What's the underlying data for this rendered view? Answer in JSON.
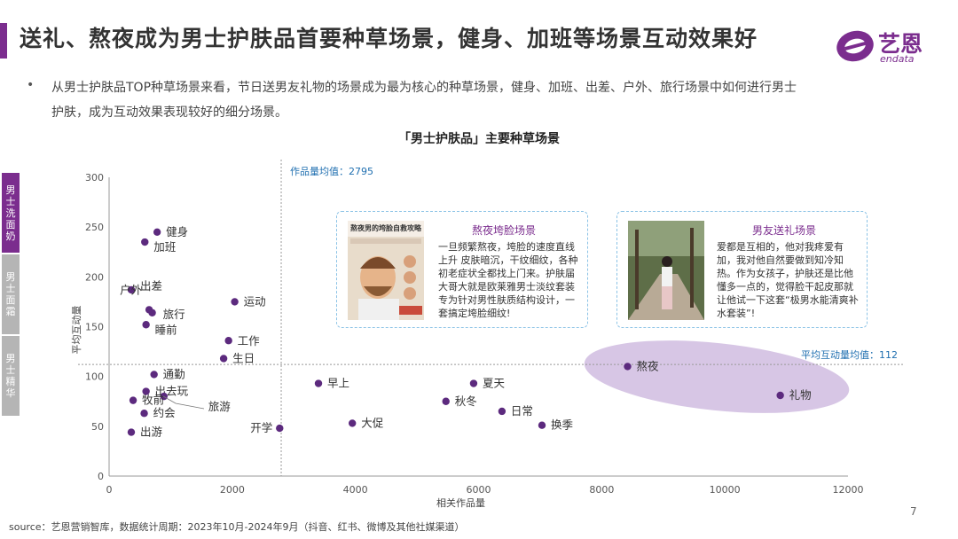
{
  "page": {
    "title": "送礼、熬夜成为男士护肤品首要种草场景，健身、加班等场景互动效果好",
    "bullet": "从男士护肤品TOP种草场景来看，节日送男友礼物的场景成为最为核心的种草场景，健身、加班、出差、户外、旅行场景中如何进行男士护肤，成为互动效果表现较好的细分场景。",
    "logo_cn": "艺恩",
    "logo_en": "endata",
    "source": "source：艺恩营销智库，数据统计周期：2023年10月-2024年9月（抖音、红书、微博及其他社媒渠道）",
    "page_number": "7"
  },
  "side_tabs": [
    {
      "label": "男士洗面奶",
      "active": true
    },
    {
      "label": "男士面霜",
      "active": false
    },
    {
      "label": "男士精华",
      "active": false
    }
  ],
  "cards": [
    {
      "title": "熬夜垮脸场景",
      "text": "一旦频繁熬夜，垮脸的速度直线上升 皮肤暗沉，干纹细纹，各种初老症状全都找上门来。护肤届大哥大就是欧莱雅男士淡纹套装 专为针对男性肤质结构设计，一套搞定垮脸细纹!",
      "image_heading": "熬夜男的垮脸自救攻略"
    },
    {
      "title": "男友送礼场景",
      "text": "爱都是互相的，他对我疼爱有加，我对他自然要做到知冷知热。作为女孩子，护肤还是比他懂多一点的，觉得脸干起皮那就让他试一下这套“极男水能清爽补水套装”!"
    }
  ],
  "chart_data": {
    "type": "scatter",
    "title": "「男士护肤品」主要种草场景",
    "xlabel": "相关作品量",
    "ylabel": "平均互动量",
    "xlim": [
      0,
      12000
    ],
    "ylim": [
      0,
      300
    ],
    "xticks": [
      0,
      2000,
      4000,
      6000,
      8000,
      10000,
      12000
    ],
    "yticks": [
      0,
      50,
      100,
      150,
      200,
      250,
      300
    ],
    "x_mean": 2795,
    "y_mean": 112,
    "x_mean_label": "作品量均值：2795",
    "y_mean_label": "平均互动量均值：112",
    "highlight": [
      "熬夜",
      "礼物"
    ],
    "point_color": "#5c2a7e",
    "points": [
      {
        "name": "健身",
        "x": 780,
        "y": 245
      },
      {
        "name": "加班",
        "x": 580,
        "y": 235
      },
      {
        "name": "出差",
        "x": 360,
        "y": 187
      },
      {
        "name": "户外",
        "x": 650,
        "y": 167
      },
      {
        "name": "旅行",
        "x": 700,
        "y": 164
      },
      {
        "name": "睡前",
        "x": 600,
        "y": 152
      },
      {
        "name": "运动",
        "x": 2040,
        "y": 175
      },
      {
        "name": "工作",
        "x": 1940,
        "y": 136
      },
      {
        "name": "生日",
        "x": 1860,
        "y": 118
      },
      {
        "name": "通勤",
        "x": 730,
        "y": 102
      },
      {
        "name": "出去玩",
        "x": 600,
        "y": 85
      },
      {
        "name": "旅游",
        "x": 890,
        "y": 80
      },
      {
        "name": "牧前",
        "x": 390,
        "y": 76
      },
      {
        "name": "约会",
        "x": 570,
        "y": 63
      },
      {
        "name": "出游",
        "x": 360,
        "y": 44
      },
      {
        "name": "开学",
        "x": 2770,
        "y": 48
      },
      {
        "name": "早上",
        "x": 3400,
        "y": 93
      },
      {
        "name": "大促",
        "x": 3950,
        "y": 53
      },
      {
        "name": "秋冬",
        "x": 5470,
        "y": 75
      },
      {
        "name": "夏天",
        "x": 5920,
        "y": 93
      },
      {
        "name": "日常",
        "x": 6380,
        "y": 65
      },
      {
        "name": "换季",
        "x": 7030,
        "y": 51
      },
      {
        "name": "熬夜",
        "x": 8420,
        "y": 110
      },
      {
        "name": "礼物",
        "x": 10900,
        "y": 81
      }
    ]
  }
}
